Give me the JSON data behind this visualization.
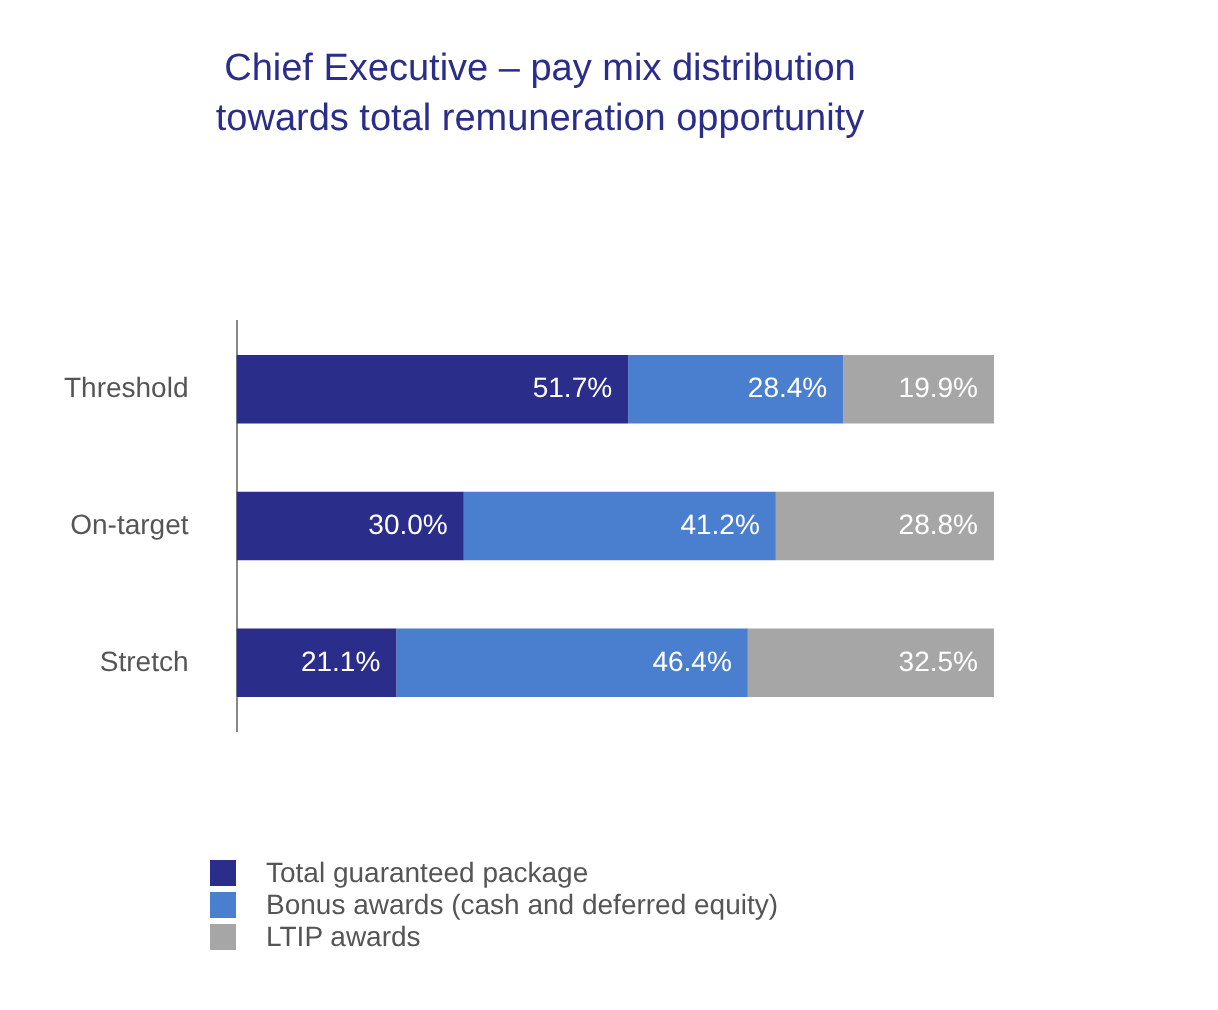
{
  "chart_data": {
    "type": "bar",
    "title": "Chief Executive – pay mix distribution towards total remuneration opportunity",
    "orientation": "horizontal",
    "stacked": true,
    "categories": [
      "Threshold",
      "On-target",
      "Stretch"
    ],
    "legend": "bottom left",
    "tick_labels": "y",
    "grid": false,
    "series": [
      {
        "name": "Total guaranteed package",
        "color": "#2b2d8a",
        "values": [
          51.7,
          30.0,
          21.1
        ],
        "value_labels": [
          "51.7%",
          "30.0%",
          "21.1%"
        ]
      },
      {
        "name": "Bonus awards (cash and deferred equity)",
        "color": "#4a7fd0",
        "values": [
          28.4,
          41.2,
          46.4
        ],
        "value_labels": [
          "28.4%",
          "41.2%",
          "46.4%"
        ]
      },
      {
        "name": "LTIP awards",
        "color": "#a6a6a6",
        "values": [
          19.9,
          28.8,
          32.5
        ],
        "value_labels": [
          "19.9%",
          "28.8%",
          "32.5%"
        ]
      }
    ]
  }
}
